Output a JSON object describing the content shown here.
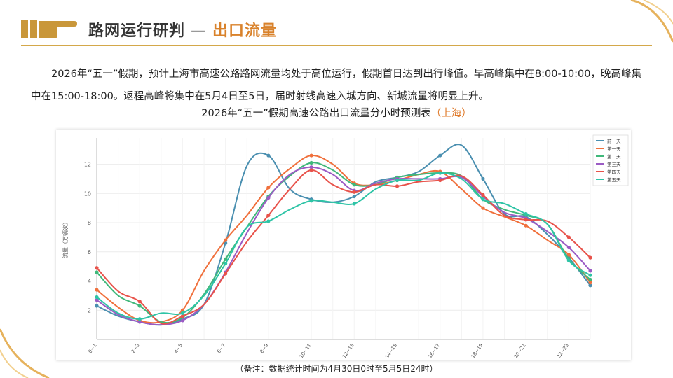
{
  "header": {
    "title": "路网运行研判",
    "separator": "—",
    "accent": "出口流量",
    "hand_icon": "pointing-hand-icon"
  },
  "paragraph": "2026年“五一”假期，预计上海市高速公路路网流量均处于高位运行，假期首日达到出行峰值。早高峰集中在8:00-10:00，晚高峰集中在15:00-18:00。返程高峰将集中在5月4日至5日，届时射线高速入城方向、新城流量将明显上升。",
  "chart_title_main": "2026年“五一”假期高速公路出口流量分小时预测表",
  "chart_title_accent": "（上海）",
  "note": "（备注：数据统计时间为4月30日0时至5月5日24时）",
  "colors": {
    "accent": "#d9822b",
    "gold": "#d4a84a"
  },
  "chart_data": {
    "type": "line",
    "title": "2026年“五一”假期高速公路出口流量分小时预测表（上海）",
    "xlabel": "",
    "ylabel": "流量（万辆次）",
    "ylim": [
      0,
      13.8
    ],
    "yticks": [
      2,
      4,
      6,
      8,
      10,
      12
    ],
    "x": [
      0,
      1,
      2,
      3,
      4,
      5,
      6,
      7,
      8,
      9,
      10,
      11,
      12,
      13,
      14,
      15,
      16,
      17,
      18,
      19,
      20,
      21,
      22,
      23
    ],
    "xtick_labels": [
      "0~1",
      "2~3",
      "4~5",
      "6~7",
      "8~9",
      "10~11",
      "12~13",
      "14~15",
      "16~17",
      "18~19",
      "20~21",
      "22~23"
    ],
    "xtick_positions": [
      0,
      2,
      4,
      6,
      8,
      10,
      12,
      14,
      16,
      18,
      20,
      22
    ],
    "grid": true,
    "legend_position": "top-right",
    "series": [
      {
        "name": "前一天",
        "color": "#4a8fb0",
        "values": [
          2.3,
          1.6,
          1.2,
          1.0,
          1.4,
          2.4,
          6.6,
          11.9,
          12.6,
          10.3,
          9.6,
          9.4,
          9.8,
          10.8,
          11.1,
          11.5,
          12.6,
          13.3,
          11.0,
          8.6,
          8.4,
          7.2,
          5.6,
          3.7
        ]
      },
      {
        "name": "第一天",
        "color": "#f0703c",
        "values": [
          3.4,
          2.2,
          1.3,
          1.2,
          2.0,
          4.7,
          6.8,
          8.5,
          10.4,
          11.7,
          12.6,
          12.0,
          10.7,
          10.6,
          10.9,
          11.3,
          11.5,
          10.3,
          9.0,
          8.4,
          7.8,
          6.8,
          5.8,
          3.9
        ]
      },
      {
        "name": "第二天",
        "color": "#3fb87a",
        "values": [
          4.6,
          3.0,
          2.3,
          1.2,
          1.5,
          3.1,
          5.5,
          7.7,
          9.8,
          11.2,
          12.1,
          11.6,
          10.6,
          10.6,
          11.1,
          11.3,
          11.4,
          11.2,
          9.6,
          8.9,
          8.5,
          7.9,
          5.5,
          4.1
        ]
      },
      {
        "name": "第三天",
        "color": "#9b5bc4",
        "values": [
          2.7,
          1.7,
          1.2,
          1.0,
          1.3,
          2.4,
          4.6,
          7.3,
          9.7,
          11.3,
          11.8,
          11.3,
          10.2,
          10.7,
          11.0,
          11.0,
          11.0,
          11.1,
          9.8,
          8.7,
          8.3,
          7.4,
          6.3,
          4.7
        ]
      },
      {
        "name": "第四天",
        "color": "#e8524a",
        "values": [
          4.9,
          3.3,
          2.6,
          1.1,
          1.6,
          2.4,
          4.5,
          6.7,
          8.5,
          10.3,
          11.6,
          10.6,
          10.1,
          10.6,
          10.5,
          10.8,
          10.9,
          11.2,
          9.9,
          8.5,
          8.2,
          8.1,
          7.0,
          5.6
        ]
      },
      {
        "name": "第五天",
        "color": "#2ec4a6",
        "values": [
          2.9,
          1.8,
          1.4,
          1.8,
          1.8,
          3.0,
          5.2,
          7.7,
          8.1,
          8.9,
          9.5,
          9.4,
          9.3,
          10.3,
          10.9,
          10.9,
          11.4,
          11.0,
          9.6,
          9.3,
          8.6,
          7.9,
          5.4,
          4.4
        ]
      }
    ]
  }
}
